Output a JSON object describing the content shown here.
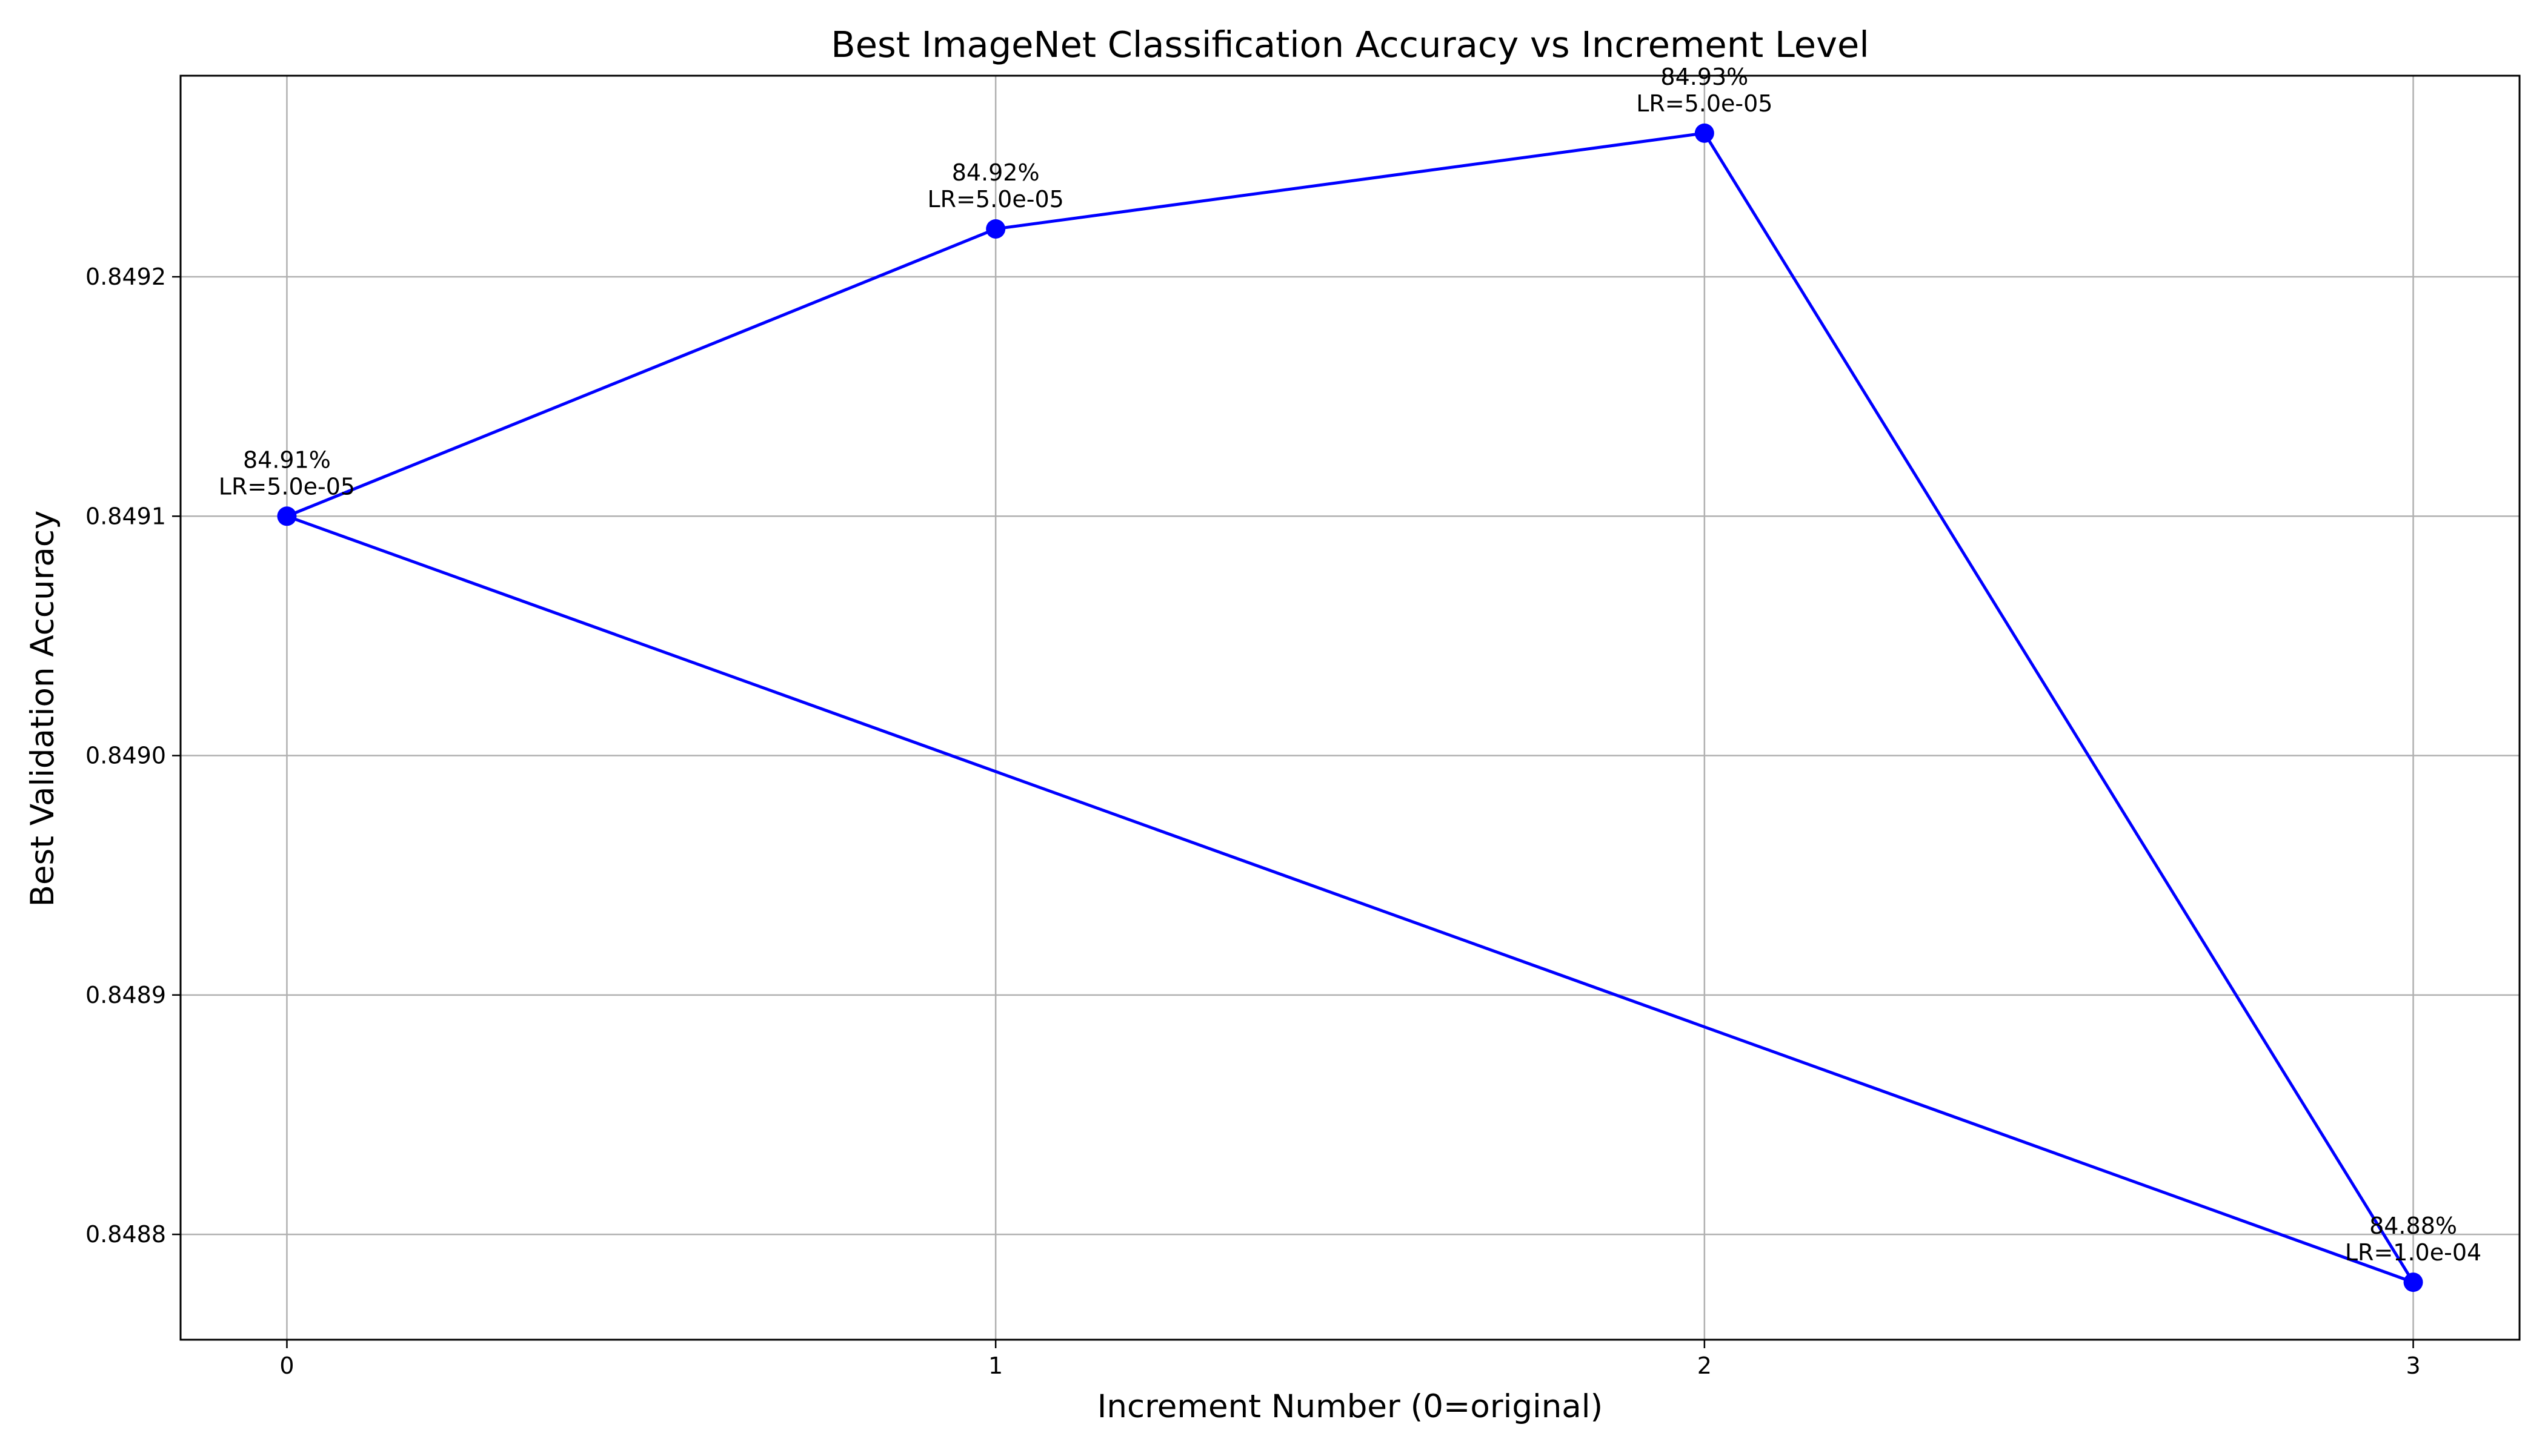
{
  "chart_data": {
    "type": "line",
    "title": "Best ImageNet Classification Accuracy vs Increment Level",
    "xlabel": "Increment Number (0=original)",
    "ylabel": "Best Validation Accuracy",
    "x": [
      0,
      1,
      2,
      3
    ],
    "y": [
      0.8491,
      0.84922,
      0.84926,
      0.84878
    ],
    "point_labels": [
      [
        "84.91%",
        "LR=5.0e-05"
      ],
      [
        "84.92%",
        "LR=5.0e-05"
      ],
      [
        "84.93%",
        "LR=5.0e-05"
      ],
      [
        "84.88%",
        "LR=1.0e-04"
      ]
    ],
    "xticks": [
      0,
      1,
      2,
      3
    ],
    "xtick_labels": [
      "0",
      "1",
      "2",
      "3"
    ],
    "yticks": [
      0.8488,
      0.8489,
      0.849,
      0.8491,
      0.8492
    ],
    "ytick_labels": [
      "0.8488",
      "0.8489",
      "0.8490",
      "0.8491",
      "0.8492"
    ],
    "xlim": [
      -0.15,
      3.15
    ],
    "ylim": [
      0.848756,
      0.849284
    ],
    "grid": true,
    "closed_line": true,
    "line_color": "#0000ff",
    "marker_color": "#0000ff"
  }
}
